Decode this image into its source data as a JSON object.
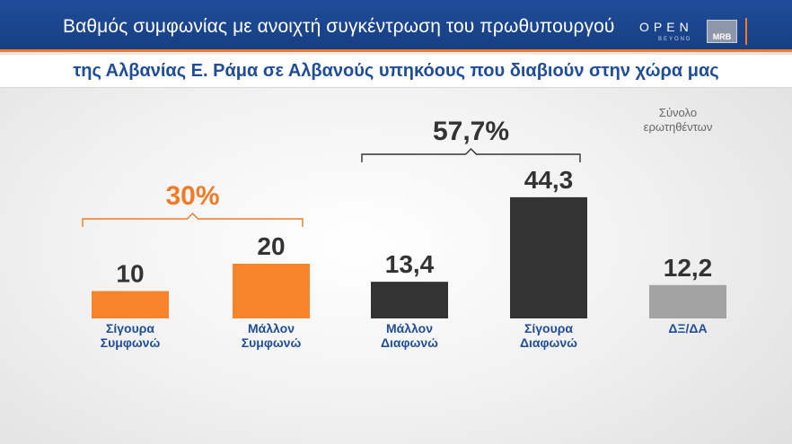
{
  "header": {
    "title": "Βαθμός συμφωνίας με ανοιχτή συγκέντρωση του πρωθυπουργού",
    "subtitle": "της Αλβανίας Ε. Ράμα σε Αλβανούς υπηκόους που διαβιούν στην χώρα μας"
  },
  "brand": {
    "open": "OPEN",
    "beyond": "BEYOND",
    "mrb": "MRB"
  },
  "legend_note": {
    "line1": "Σύνολο",
    "line2": "ερωτηθέντων"
  },
  "colors": {
    "header_blue": "#1f4d9a",
    "accent_orange": "#f07a25",
    "agree_orange": "#f5842a",
    "disagree_dark": "#333333",
    "dk_gray": "#a3a3a3",
    "label_blue": "#1f4d9a"
  },
  "chart_data": {
    "type": "bar",
    "categories": [
      [
        "Σίγουρα",
        "Συμφωνώ"
      ],
      [
        "Μάλλον",
        "Συμφωνώ"
      ],
      [
        "Μάλλον",
        "Διαφωνώ"
      ],
      [
        "Σίγουρα",
        "Διαφωνώ"
      ],
      [
        "ΔΞ/ΔΑ"
      ]
    ],
    "values": [
      10,
      20,
      13.4,
      44.3,
      12.2
    ],
    "value_labels": [
      "10",
      "20",
      "13,4",
      "44,3",
      "12,2"
    ],
    "bar_colors": [
      "#f5842a",
      "#f5842a",
      "#333333",
      "#333333",
      "#a3a3a3"
    ],
    "groups": [
      {
        "label": "30%",
        "from": 0,
        "to": 1,
        "color": "#f07a25"
      },
      {
        "label": "57,7%",
        "from": 2,
        "to": 3,
        "color": "#333333"
      }
    ],
    "ylim": [
      0,
      50
    ],
    "grid": false
  }
}
